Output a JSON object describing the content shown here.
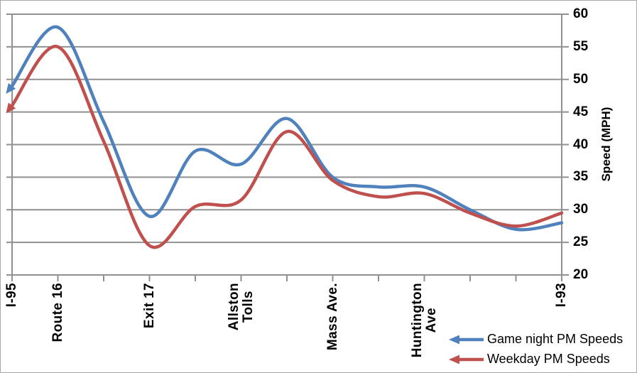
{
  "chart_data": {
    "type": "line",
    "title": "",
    "xlabel": "",
    "ylabel": "Speed (MPH)",
    "ylim": [
      20,
      60
    ],
    "y_ticks": [
      60,
      55,
      50,
      45,
      40,
      35,
      30,
      25,
      20
    ],
    "x_tick_count": 13,
    "grid": "horizontal",
    "legend_position": "bottom-right",
    "axis_color": "#919191",
    "x_labels": [
      {
        "index": 0,
        "text": "I-95"
      },
      {
        "index": 1,
        "text": "Route 16"
      },
      {
        "index": 3,
        "text": "Exit 17"
      },
      {
        "index": 5,
        "text": "Allston\nTolls"
      },
      {
        "index": 7,
        "text": "Mass Ave."
      },
      {
        "index": 9,
        "text": "Huntington\nAve"
      },
      {
        "index": 12,
        "text": "I-93"
      }
    ],
    "series": [
      {
        "name": "Game night PM Speeds",
        "color": "#4F81BD",
        "start_arrow": true,
        "smoothed": true,
        "values": [
          49,
          58,
          43.5,
          29,
          39,
          37,
          44,
          35,
          33.5,
          33.5,
          30,
          27,
          28
        ]
      },
      {
        "name": "Weekday PM Speeds",
        "color": "#C0504D",
        "start_arrow": true,
        "smoothed": true,
        "values": [
          46,
          55,
          40.5,
          24.5,
          30.5,
          31.5,
          42,
          34.5,
          32,
          32.5,
          29.5,
          27.5,
          29.5
        ]
      }
    ]
  }
}
